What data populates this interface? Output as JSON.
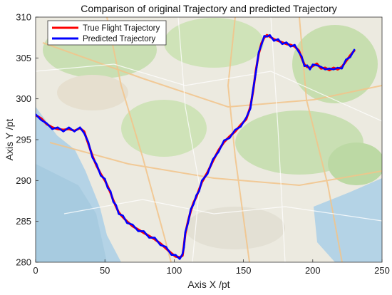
{
  "chart_data": {
    "type": "line",
    "title": "Comparison of original Trajectory and predicted Trajectory",
    "xlabel": "Axis X /pt",
    "ylabel": "Axis Y /pt",
    "xlim": [
      0,
      250
    ],
    "ylim": [
      280,
      310
    ],
    "xticks": [
      0,
      50,
      100,
      150,
      200,
      250
    ],
    "yticks": [
      280,
      285,
      290,
      295,
      300,
      305,
      310
    ],
    "legend_position": "top-left",
    "background": "street map",
    "series": [
      {
        "name": "True Flight Trajectory",
        "color": "#ff0000",
        "x": [
          0,
          4,
          8,
          12,
          16,
          20,
          24,
          28,
          32,
          35,
          38,
          41,
          44,
          47,
          50,
          52,
          54,
          56,
          58,
          60,
          63,
          66,
          70,
          74,
          78,
          82,
          86,
          90,
          94,
          98,
          101,
          104,
          106,
          107,
          108,
          110,
          112,
          114,
          116,
          118,
          120,
          124,
          128,
          132,
          136,
          140,
          144,
          148,
          152,
          155,
          157,
          159,
          161,
          163,
          165,
          167,
          169,
          172,
          175,
          178,
          181,
          184,
          187,
          190,
          192,
          194,
          196,
          198,
          200,
          203,
          206,
          209,
          212,
          215,
          218,
          221,
          224,
          227,
          230
        ],
        "y": [
          298,
          297.6,
          296.9,
          296.5,
          296.3,
          296.2,
          296.3,
          296.1,
          296.4,
          296.0,
          294.5,
          293.0,
          291.8,
          290.8,
          290.0,
          289.3,
          288.5,
          287.6,
          286.8,
          286.1,
          285.5,
          285.0,
          284.4,
          284.0,
          283.6,
          283.2,
          282.8,
          282.3,
          281.7,
          281.1,
          280.7,
          280.6,
          280.8,
          282.0,
          283.5,
          285.0,
          286.3,
          287.3,
          288.0,
          288.9,
          289.8,
          291.0,
          292.4,
          293.7,
          294.7,
          295.4,
          296.0,
          296.8,
          297.5,
          299.0,
          301.0,
          303.5,
          305.5,
          306.8,
          307.5,
          307.8,
          307.6,
          307.3,
          307.1,
          306.9,
          306.7,
          306.6,
          306.4,
          305.9,
          305.0,
          304.2,
          303.9,
          303.8,
          304.0,
          304.3,
          303.7,
          303.8,
          303.5,
          303.8,
          303.6,
          303.9,
          304.6,
          305.3,
          305.9
        ]
      },
      {
        "name": "Predicted Trajectory",
        "color": "#0000ff",
        "x": [
          0,
          4,
          8,
          12,
          16,
          20,
          24,
          28,
          32,
          35,
          38,
          41,
          44,
          47,
          50,
          52,
          54,
          56,
          58,
          60,
          63,
          66,
          70,
          74,
          78,
          82,
          86,
          90,
          94,
          98,
          101,
          104,
          106,
          107,
          108,
          110,
          112,
          114,
          116,
          118,
          120,
          124,
          128,
          132,
          136,
          140,
          144,
          148,
          152,
          155,
          157,
          159,
          161,
          163,
          165,
          167,
          169,
          172,
          175,
          178,
          181,
          184,
          187,
          190,
          192,
          194,
          196,
          198,
          200,
          203,
          206,
          209,
          212,
          215,
          218,
          221,
          224,
          227,
          230
        ],
        "y": [
          298.1,
          297.4,
          297.0,
          296.3,
          296.5,
          296.0,
          296.5,
          296.0,
          296.5,
          295.8,
          294.7,
          292.8,
          292.0,
          290.6,
          290.2,
          289.1,
          288.7,
          287.4,
          287.0,
          285.9,
          285.7,
          284.8,
          284.6,
          283.8,
          283.8,
          283.0,
          283.0,
          282.1,
          281.9,
          280.9,
          280.9,
          280.4,
          281.0,
          281.8,
          283.7,
          284.8,
          286.5,
          287.1,
          288.2,
          288.7,
          290.0,
          290.8,
          292.6,
          293.5,
          294.9,
          295.2,
          296.2,
          296.6,
          297.7,
          298.8,
          301.2,
          303.3,
          305.7,
          306.6,
          307.7,
          307.6,
          307.8,
          307.1,
          307.3,
          306.7,
          306.9,
          306.4,
          306.6,
          305.7,
          305.2,
          304.0,
          304.1,
          303.6,
          304.2,
          304.1,
          303.9,
          303.6,
          303.7,
          303.6,
          303.8,
          303.7,
          304.8,
          305.1,
          306.0
        ]
      }
    ]
  }
}
